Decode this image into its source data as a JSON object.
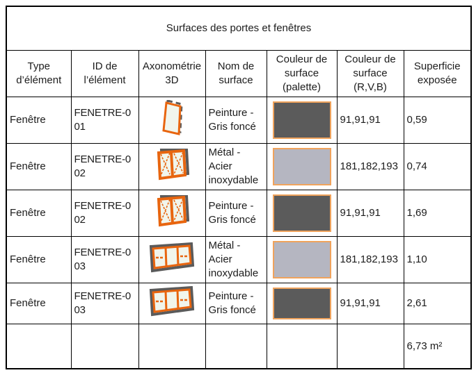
{
  "title": "Surfaces des portes et fenêtres",
  "columns": {
    "type": "Type d’élément",
    "id": "ID de l’élément",
    "axon": "Axonométrie 3D",
    "surface_name": "Nom de surface",
    "palette": "Couleur de surface (palette)",
    "rvb": "Couleur de surface (R,V,B)",
    "area": "Superficie exposée"
  },
  "rows": [
    {
      "type": "Fenêtre",
      "id": "FENETRE-001",
      "icon": "window-1-pane-axon-icon",
      "surface_name": "Peinture - Gris foncé",
      "palette_color": "#5b5b5b",
      "rvb": "91,91,91",
      "area": "0,59"
    },
    {
      "type": "Fenêtre",
      "id": "FENETRE-002",
      "icon": "window-2-pane-axon-icon",
      "surface_name": "Métal - Acier inoxydable",
      "palette_color": "#b5b6c1",
      "rvb": "181,182,193",
      "area": "0,74"
    },
    {
      "type": "Fenêtre",
      "id": "FENETRE-002",
      "icon": "window-2-pane-axon-icon",
      "surface_name": "Peinture - Gris foncé",
      "palette_color": "#5b5b5b",
      "rvb": "91,91,91",
      "area": "1,69"
    },
    {
      "type": "Fenêtre",
      "id": "FENETRE-003",
      "icon": "window-3-pane-axon-icon",
      "surface_name": "Métal - Acier inoxydable",
      "palette_color": "#b5b6c1",
      "rvb": "181,182,193",
      "area": "1,10"
    },
    {
      "type": "Fenêtre",
      "id": "FENETRE-003",
      "icon": "window-3-pane-axon-icon",
      "surface_name": "Peinture - Gris foncé",
      "palette_color": "#5b5b5b",
      "rvb": "91,91,91",
      "area": "2,61"
    }
  ],
  "total": {
    "area": "6,73 m²"
  },
  "colors": {
    "dark_gray_surface": "#5b5b5b",
    "light_gray_surface": "#b5b6c1",
    "swatch_border_orange": "#f0a35c",
    "icon_orange": "#e8650f",
    "icon_gray": "#5b5b5b",
    "icon_pane_fill": "#f1f5ec",
    "grid_border": "#000000"
  }
}
